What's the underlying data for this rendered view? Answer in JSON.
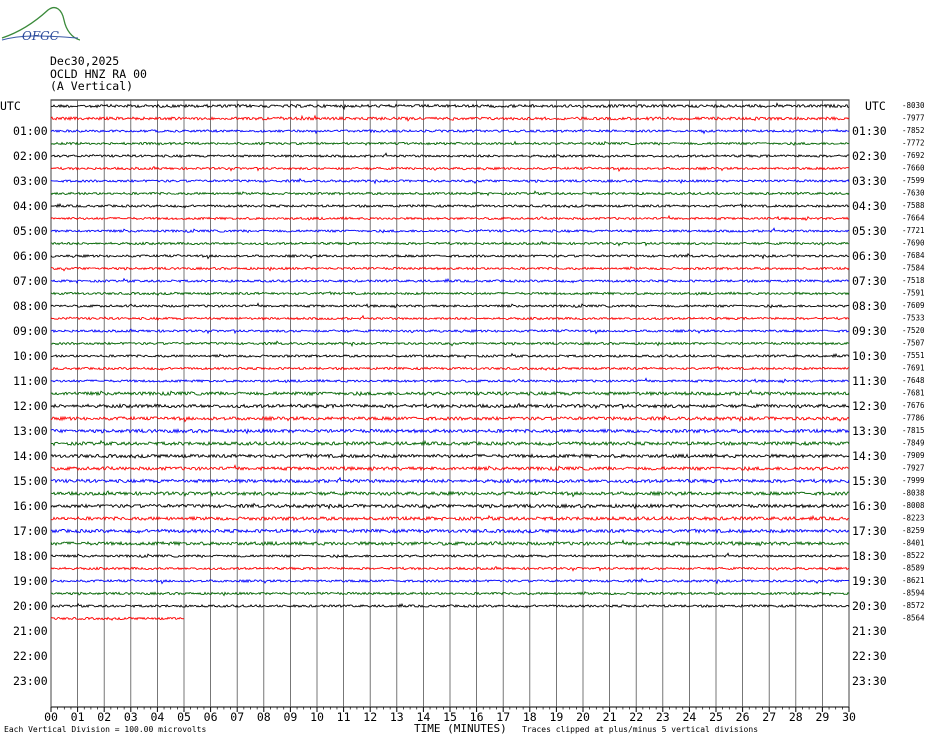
{
  "logo_text": "OFGC",
  "header": {
    "date": "Dec30,2025",
    "station": "OCLD HNZ RA 00",
    "component": "(A Vertical)"
  },
  "chart_data": {
    "type": "line",
    "title": "Dec30,2025",
    "left_axis_title": "UTC",
    "right_axis_title": "UTC",
    "xlabel": "TIME (MINUTES)",
    "x_ticks": [
      "00",
      "01",
      "02",
      "03",
      "04",
      "05",
      "06",
      "07",
      "08",
      "09",
      "10",
      "11",
      "12",
      "13",
      "14",
      "15",
      "16",
      "17",
      "18",
      "19",
      "20",
      "21",
      "22",
      "23",
      "24",
      "25",
      "26",
      "27",
      "28",
      "29",
      "30"
    ],
    "xlim": [
      0,
      30
    ],
    "left_hour_labels": [
      "01:00",
      "02:00",
      "03:00",
      "04:00",
      "05:00",
      "06:00",
      "07:00",
      "08:00",
      "09:00",
      "10:00",
      "11:00",
      "12:00",
      "13:00",
      "14:00",
      "15:00",
      "16:00",
      "17:00",
      "18:00",
      "19:00",
      "20:00",
      "21:00",
      "22:00",
      "23:00"
    ],
    "right_hour_labels": [
      "01:30",
      "02:30",
      "03:30",
      "04:30",
      "05:30",
      "06:30",
      "07:30",
      "08:30",
      "09:30",
      "10:30",
      "11:30",
      "12:30",
      "13:30",
      "14:30",
      "15:30",
      "16:30",
      "17:30",
      "18:30",
      "19:30",
      "20:30",
      "21:30",
      "22:30",
      "23:30"
    ],
    "trace_offsets": [
      "-8030",
      "-7977",
      "-7852",
      "-7772",
      "-7692",
      "-7660",
      "-7599",
      "-7630",
      "-7588",
      "-7664",
      "-7721",
      "-7690",
      "-7684",
      "-7584",
      "-7518",
      "-7591",
      "-7609",
      "-7533",
      "-7520",
      "-7507",
      "-7551",
      "-7691",
      "-7648",
      "-7681",
      "-7676",
      "-7786",
      "-7815",
      "-7849",
      "-7909",
      "-7927",
      "-7999",
      "-8038",
      "-8008",
      "-8223",
      "-8259",
      "-8401",
      "-8522",
      "-8589",
      "-8621",
      "-8594",
      "-8572",
      "-8564"
    ],
    "trace_count": 42,
    "last_trace_minutes": 5,
    "trace_colors": [
      "#000000",
      "#ff0000",
      "#0000ff",
      "#006400"
    ],
    "footer_left": "Each Vertical Division = 100.00 microvolts",
    "footer_right": "Traces clipped at plus/minus 5 vertical divisions",
    "grid": true
  }
}
